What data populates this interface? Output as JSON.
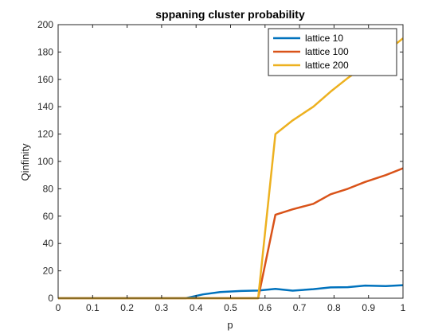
{
  "chart_data": {
    "type": "line",
    "title": "sppaning cluster probability",
    "xlabel": "p",
    "ylabel": "Qinfinity",
    "xlim": [
      0,
      1
    ],
    "ylim": [
      0,
      200
    ],
    "xticks": [
      "0",
      "0.1",
      "0.2",
      "0.3",
      "0.4",
      "0.5",
      "0.6",
      "0.7",
      "0.8",
      "0.9",
      "1"
    ],
    "yticks": [
      "0",
      "20",
      "40",
      "60",
      "80",
      "100",
      "120",
      "140",
      "160",
      "180",
      "200"
    ],
    "grid": false,
    "legend_position": "top-right",
    "x": [
      0,
      0.37,
      0.42,
      0.47,
      0.53,
      0.58,
      0.63,
      0.68,
      0.74,
      0.79,
      0.84,
      0.89,
      0.95,
      1.0
    ],
    "series": [
      {
        "name": "lattice 10",
        "color": "#0072BD",
        "values": [
          0,
          0,
          2.8,
          4.5,
          5.3,
          5.6,
          6.8,
          5.5,
          6.6,
          7.9,
          8.1,
          9.2,
          8.9,
          9.5
        ]
      },
      {
        "name": "lattice 100",
        "color": "#D95319",
        "values": [
          0,
          0,
          0,
          0,
          0,
          0,
          61,
          65,
          69,
          76,
          80,
          85,
          90,
          95
        ]
      },
      {
        "name": "lattice 200",
        "color": "#EDB120",
        "values": [
          0,
          0,
          0,
          0,
          0,
          0,
          120,
          130,
          140,
          151,
          161,
          170,
          180,
          190
        ]
      }
    ]
  }
}
